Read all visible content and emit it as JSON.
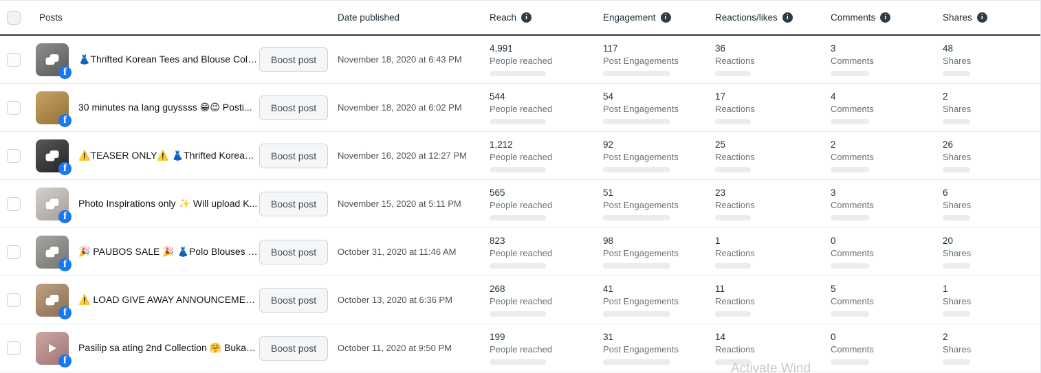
{
  "header": {
    "posts": "Posts",
    "date": "Date published",
    "reach": "Reach",
    "engagement": "Engagement",
    "reactions": "Reactions/likes",
    "comments": "Comments",
    "shares": "Shares"
  },
  "boost_label": "Boost post",
  "metric_labels": {
    "reach": "People reached",
    "engagement": "Post Engagements",
    "reactions": "Reactions",
    "comments": "Comments",
    "shares": "Shares"
  },
  "colors": {
    "reach_bar": "#cd7a04",
    "metric_bar": "#0e7a55",
    "bar_track": "#e9edf0",
    "facebook_blue": "#1877f2"
  },
  "watermark": "Activate Wind",
  "rows": [
    {
      "title": "👗Thrifted Korean Tees and Blouse Colle...",
      "date": "November 18, 2020 at 6:43 PM",
      "thumb_type": "album",
      "thumb_color": "#6f6d6a",
      "reach": {
        "value": "4,991",
        "pct": 100
      },
      "engagement": {
        "value": "117",
        "pct": 55
      },
      "reactions": {
        "value": "36",
        "pct": 72
      },
      "comments": {
        "value": "3",
        "pct": 20
      },
      "shares": {
        "value": "48",
        "pct": 100
      }
    },
    {
      "title": "30 minutes na lang guyssss 😁😉 Posti...",
      "date": "November 18, 2020 at 6:02 PM",
      "thumb_type": "photo",
      "thumb_color": "#b5893c",
      "reach": {
        "value": "544",
        "pct": 11
      },
      "engagement": {
        "value": "54",
        "pct": 26
      },
      "reactions": {
        "value": "17",
        "pct": 34
      },
      "comments": {
        "value": "4",
        "pct": 26
      },
      "shares": {
        "value": "2",
        "pct": 6
      }
    },
    {
      "title": "⚠️TEASER ONLY⚠️ 👗Thrifted Korean T...",
      "date": "November 16, 2020 at 12:27 PM",
      "thumb_type": "album",
      "thumb_color": "#2a2a2a",
      "reach": {
        "value": "1,212",
        "pct": 24
      },
      "engagement": {
        "value": "92",
        "pct": 44
      },
      "reactions": {
        "value": "25",
        "pct": 50
      },
      "comments": {
        "value": "2",
        "pct": 13
      },
      "shares": {
        "value": "26",
        "pct": 54
      }
    },
    {
      "title": "Photo Inspirations only ✨ Will upload K...",
      "date": "November 15, 2020 at 5:11 PM",
      "thumb_type": "album",
      "thumb_color": "#c9c2ba",
      "reach": {
        "value": "565",
        "pct": 11
      },
      "engagement": {
        "value": "51",
        "pct": 24
      },
      "reactions": {
        "value": "23",
        "pct": 46
      },
      "comments": {
        "value": "3",
        "pct": 20
      },
      "shares": {
        "value": "6",
        "pct": 12
      }
    },
    {
      "title": "🎉 PAUBOS SALE 🎉 👗Polo Blouses @ ...",
      "date": "October 31, 2020 at 11:46 AM",
      "thumb_type": "album",
      "thumb_color": "#8d8c88",
      "reach": {
        "value": "823",
        "pct": 16
      },
      "engagement": {
        "value": "98",
        "pct": 47
      },
      "reactions": {
        "value": "1",
        "pct": 5
      },
      "comments": {
        "value": "0",
        "pct": 0
      },
      "shares": {
        "value": "20",
        "pct": 42
      }
    },
    {
      "title": "⚠️ LOAD GIVE AWAY ANNOUNCEMENT...",
      "date": "October 13, 2020 at 6:36 PM",
      "thumb_type": "album",
      "thumb_color": "#ab8560",
      "reach": {
        "value": "268",
        "pct": 5
      },
      "engagement": {
        "value": "41",
        "pct": 20
      },
      "reactions": {
        "value": "11",
        "pct": 22
      },
      "comments": {
        "value": "5",
        "pct": 32
      },
      "shares": {
        "value": "1",
        "pct": 4
      }
    },
    {
      "title": "Pasilip sa ating 2nd Collection 🤗 Bukas ...",
      "date": "October 11, 2020 at 9:50 PM",
      "thumb_type": "video",
      "thumb_color": "#c08e8a",
      "reach": {
        "value": "199",
        "pct": 4
      },
      "engagement": {
        "value": "31",
        "pct": 15
      },
      "reactions": {
        "value": "14",
        "pct": 28
      },
      "comments": {
        "value": "0",
        "pct": 0
      },
      "shares": {
        "value": "2",
        "pct": 6
      }
    }
  ]
}
